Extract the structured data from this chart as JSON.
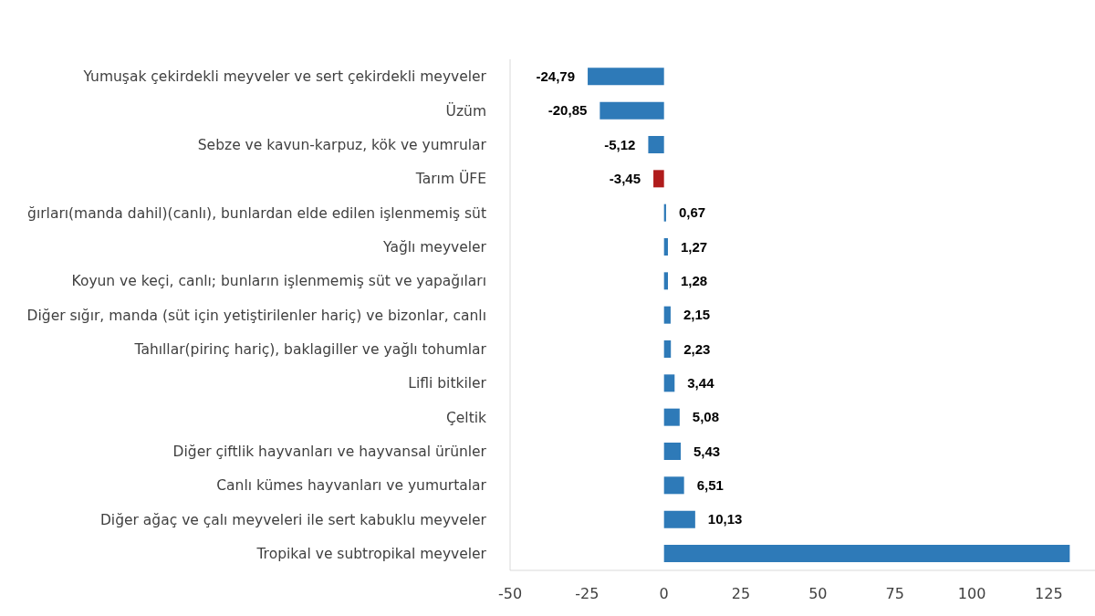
{
  "chart_data": {
    "type": "bar",
    "orientation": "horizontal",
    "categories": [
      "Yumuşak çekirdekli meyveler ve sert çekirdekli meyveler",
      "Üzüm",
      "Sebze ve kavun-karpuz, kök ve yumrular",
      "Tarım ÜFE",
      "ğırları(manda dahil)(canlı), bunlardan elde edilen işlenmemiş süt",
      "Yağlı meyveler",
      "Koyun ve keçi, canlı; bunların işlenmemiş süt ve yapağıları",
      "Diğer sığır, manda (süt için yetiştirilenler hariç) ve bizonlar, canlı",
      "Tahıllar(pirinç hariç), baklagiller ve yağlı tohumlar",
      "Lifli bitkiler",
      "Çeltik",
      "Diğer çiftlik hayvanları ve hayvansal ürünler",
      "Canlı kümes hayvanları ve yumurtalar",
      "Diğer ağaç ve çalı meyveleri ile sert kabuklu meyveler",
      "Tropikal ve subtropikal meyveler"
    ],
    "values": [
      -24.79,
      -20.85,
      -5.12,
      -3.45,
      0.67,
      1.27,
      1.28,
      2.15,
      2.23,
      3.44,
      5.08,
      5.43,
      6.51,
      10.13,
      131.8
    ],
    "value_labels": [
      "-24,79",
      "-20,85",
      "-5,12",
      "-3,45",
      "0,67",
      "1,27",
      "1,28",
      "2,15",
      "2,23",
      "3,44",
      "5,08",
      "5,43",
      "6,51",
      "10,13",
      null
    ],
    "colors": [
      "#2e7ab8",
      "#2e7ab8",
      "#2e7ab8",
      "#b01c1c",
      "#2e7ab8",
      "#2e7ab8",
      "#2e7ab8",
      "#2e7ab8",
      "#2e7ab8",
      "#2e7ab8",
      "#2e7ab8",
      "#2e7ab8",
      "#2e7ab8",
      "#2e7ab8",
      "#2e7ab8"
    ],
    "xlim": [
      -50,
      140
    ],
    "xticks": [
      -50,
      -25,
      0,
      25,
      50,
      75,
      100,
      125
    ],
    "grid": false
  }
}
